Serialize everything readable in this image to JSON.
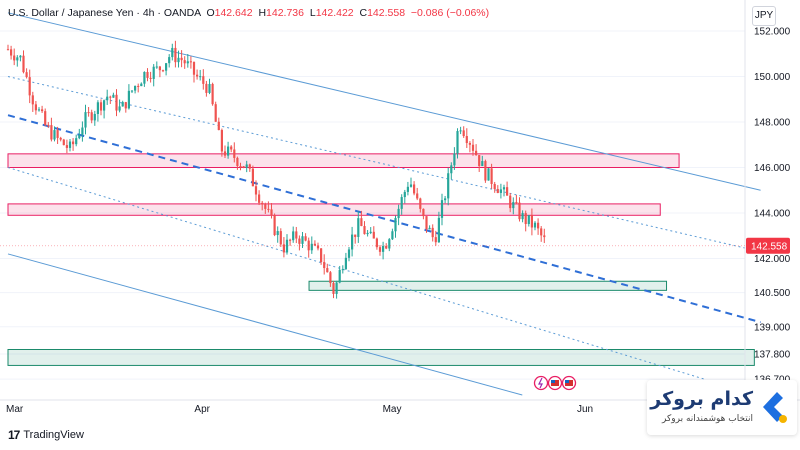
{
  "header": {
    "symbol": "U.S. Dollar / Japanese Yen · 4h · OANDA",
    "o_label": "O",
    "o": "142.642",
    "h_label": "H",
    "h": "142.736",
    "l_label": "L",
    "l": "142.422",
    "c_label": "C",
    "c": "142.558",
    "change": "−0.086 (−0.06%)"
  },
  "currency": "JPY",
  "footer": {
    "tradingview": "TradingView"
  },
  "brand": {
    "name": "کدام بروکر",
    "tagline": "انتخاب هوشمندانه بروکر"
  },
  "colors": {
    "up": "#26a69a",
    "down": "#ef5350",
    "price_label": "#f23645",
    "channel": "#5b9bd5",
    "supply_zone": "#e91e63",
    "demand_zone": "#1b8a6b"
  },
  "chart_data": {
    "type": "candlestick",
    "title": "U.S. Dollar / Japanese Yen · 4h · OANDA",
    "x_time_ticks": [
      "Mar",
      "Apr",
      "May",
      "Jun"
    ],
    "y_ticks": [
      152.0,
      150.0,
      148.0,
      146.0,
      144.0,
      142.0,
      140.5,
      139.0,
      137.8,
      136.7
    ],
    "y_tick_labels": [
      "152.000",
      "150.000",
      "148.000",
      "146.000",
      "144.000",
      "142.000",
      "140.500",
      "139.000",
      "137.800",
      "136.700"
    ],
    "ylim": [
      136.7,
      152.0
    ],
    "last_price": 142.558,
    "last_price_label": "142.558",
    "close_path": [
      [
        "2025-03-01",
        151.2
      ],
      [
        "2025-03-03",
        150.8
      ],
      [
        "2025-03-05",
        149.0
      ],
      [
        "2025-03-07",
        147.8
      ],
      [
        "2025-03-09",
        147.2
      ],
      [
        "2025-03-11",
        146.8
      ],
      [
        "2025-03-13",
        148.0
      ],
      [
        "2025-03-15",
        148.6
      ],
      [
        "2025-03-17",
        149.2
      ],
      [
        "2025-03-19",
        148.5
      ],
      [
        "2025-03-21",
        149.5
      ],
      [
        "2025-03-23",
        150.2
      ],
      [
        "2025-03-25",
        150.3
      ],
      [
        "2025-03-27",
        151.0
      ],
      [
        "2025-03-29",
        150.7
      ],
      [
        "2025-03-31",
        150.0
      ],
      [
        "2025-04-02",
        149.5
      ],
      [
        "2025-04-04",
        146.8
      ],
      [
        "2025-04-06",
        146.5
      ],
      [
        "2025-04-08",
        146.0
      ],
      [
        "2025-04-10",
        144.8
      ],
      [
        "2025-04-12",
        143.6
      ],
      [
        "2025-04-14",
        142.5
      ],
      [
        "2025-04-16",
        143.0
      ],
      [
        "2025-04-18",
        142.6
      ],
      [
        "2025-04-20",
        142.0
      ],
      [
        "2025-04-22",
        140.5
      ],
      [
        "2025-04-24",
        142.5
      ],
      [
        "2025-04-26",
        143.5
      ],
      [
        "2025-04-28",
        142.8
      ],
      [
        "2025-04-30",
        142.5
      ],
      [
        "2025-05-02",
        144.0
      ],
      [
        "2025-05-04",
        145.5
      ],
      [
        "2025-05-06",
        143.8
      ],
      [
        "2025-05-08",
        142.8
      ],
      [
        "2025-05-10",
        145.2
      ],
      [
        "2025-05-12",
        148.0
      ],
      [
        "2025-05-14",
        147.0
      ],
      [
        "2025-05-16",
        145.8
      ],
      [
        "2025-05-18",
        145.2
      ],
      [
        "2025-05-20",
        144.5
      ],
      [
        "2025-05-22",
        143.8
      ],
      [
        "2025-05-24",
        143.4
      ],
      [
        "2025-05-26",
        142.56
      ]
    ],
    "channel_lines": [
      {
        "style": "solid",
        "from": [
          "2025-03-01",
          152.8
        ],
        "to": [
          "2025-06-29",
          145.0
        ]
      },
      {
        "style": "dotted",
        "from": [
          "2025-03-01",
          150.0
        ],
        "to": [
          "2025-06-29",
          142.3
        ]
      },
      {
        "style": "dashed",
        "from": [
          "2025-03-01",
          148.3
        ],
        "to": [
          "2025-06-29",
          139.2
        ]
      },
      {
        "style": "dotted",
        "from": [
          "2025-03-01",
          146.0
        ],
        "to": [
          "2025-06-20",
          136.7
        ]
      },
      {
        "style": "solid",
        "from": [
          "2025-03-01",
          142.2
        ],
        "to": [
          "2025-05-22",
          136.0
        ]
      }
    ],
    "zones": [
      {
        "kind": "supply",
        "from": "2025-03-01",
        "to": "2025-06-16",
        "y_low": 146.0,
        "y_high": 146.6
      },
      {
        "kind": "supply",
        "from": "2025-03-01",
        "to": "2025-06-13",
        "y_low": 143.9,
        "y_high": 144.4
      },
      {
        "kind": "demand",
        "from": "2025-04-18",
        "to": "2025-06-14",
        "y_low": 140.6,
        "y_high": 141.0
      },
      {
        "kind": "demand",
        "from": "2025-03-01",
        "to": "2025-06-28",
        "y_low": 137.3,
        "y_high": 138.0
      }
    ]
  }
}
